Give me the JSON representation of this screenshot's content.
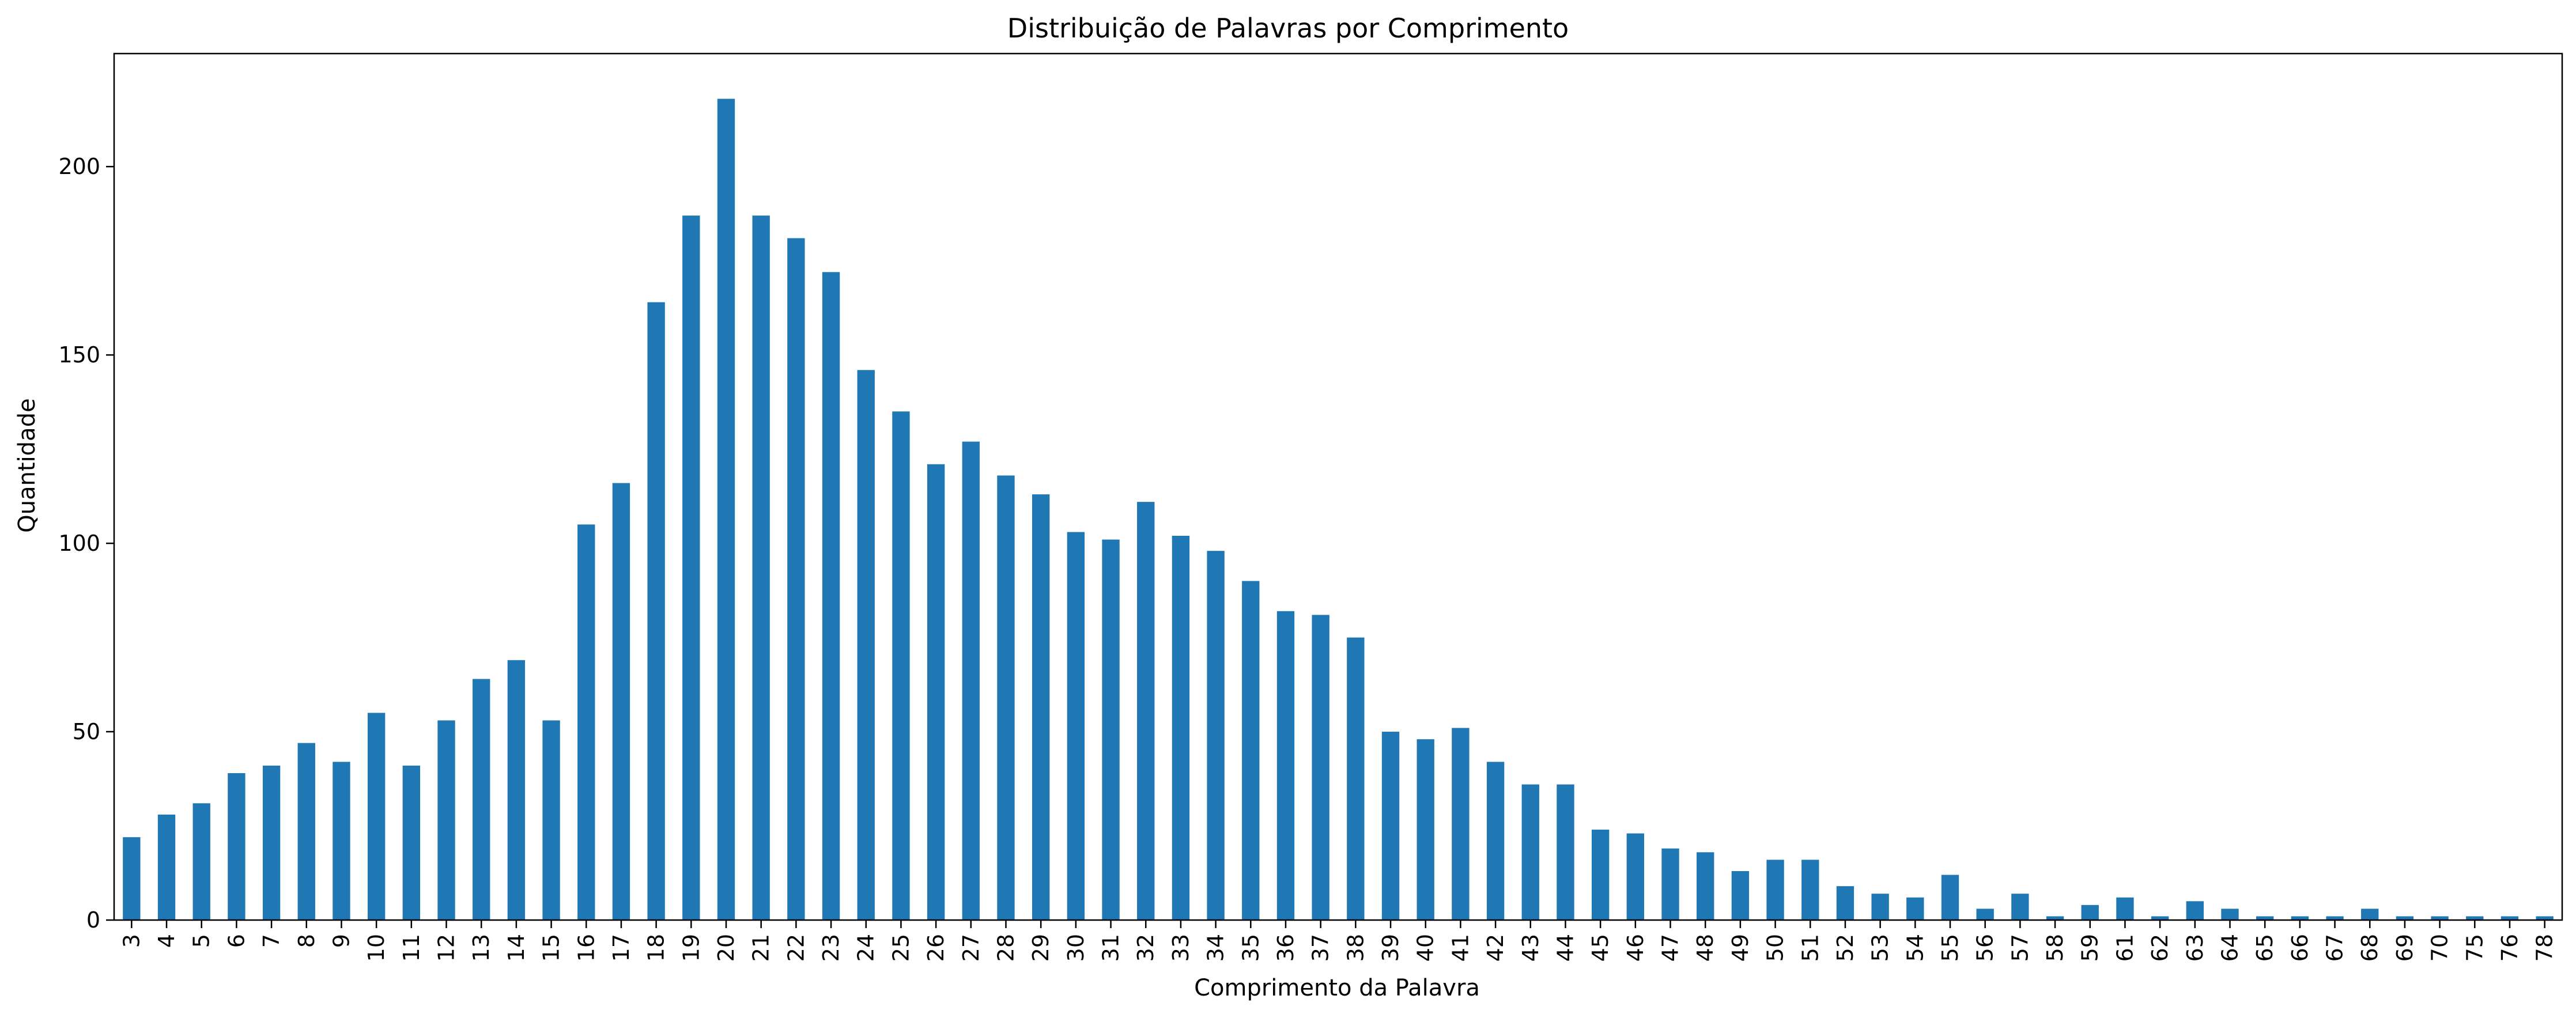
{
  "chart_data": {
    "type": "bar",
    "title": "Distribuição de Palavras por Comprimento",
    "xlabel": "Comprimento da Palavra",
    "ylabel": "Quantidade",
    "ylim": [
      0,
      230
    ],
    "yticks": [
      0,
      50,
      100,
      150,
      200
    ],
    "grid": false,
    "legend": "none",
    "bar_color": "#1f77b4",
    "categories": [
      "3",
      "4",
      "5",
      "6",
      "7",
      "8",
      "9",
      "10",
      "11",
      "12",
      "13",
      "14",
      "15",
      "16",
      "17",
      "18",
      "19",
      "20",
      "21",
      "22",
      "23",
      "24",
      "25",
      "26",
      "27",
      "28",
      "29",
      "30",
      "31",
      "32",
      "33",
      "34",
      "35",
      "36",
      "37",
      "38",
      "39",
      "40",
      "41",
      "42",
      "43",
      "44",
      "45",
      "46",
      "47",
      "48",
      "49",
      "50",
      "51",
      "52",
      "53",
      "54",
      "55",
      "56",
      "57",
      "58",
      "59",
      "61",
      "62",
      "63",
      "64",
      "65",
      "66",
      "67",
      "68",
      "69",
      "70",
      "75",
      "76",
      "78"
    ],
    "values": [
      22,
      28,
      31,
      39,
      41,
      47,
      42,
      55,
      41,
      53,
      64,
      69,
      53,
      105,
      116,
      164,
      187,
      218,
      187,
      181,
      172,
      146,
      135,
      121,
      127,
      118,
      113,
      103,
      101,
      111,
      102,
      98,
      90,
      82,
      81,
      75,
      50,
      48,
      51,
      42,
      36,
      36,
      24,
      23,
      19,
      18,
      13,
      16,
      16,
      9,
      7,
      6,
      12,
      3,
      7,
      1,
      4,
      6,
      1,
      5,
      3,
      1,
      1,
      1,
      3,
      1,
      1,
      1,
      1,
      1
    ]
  }
}
